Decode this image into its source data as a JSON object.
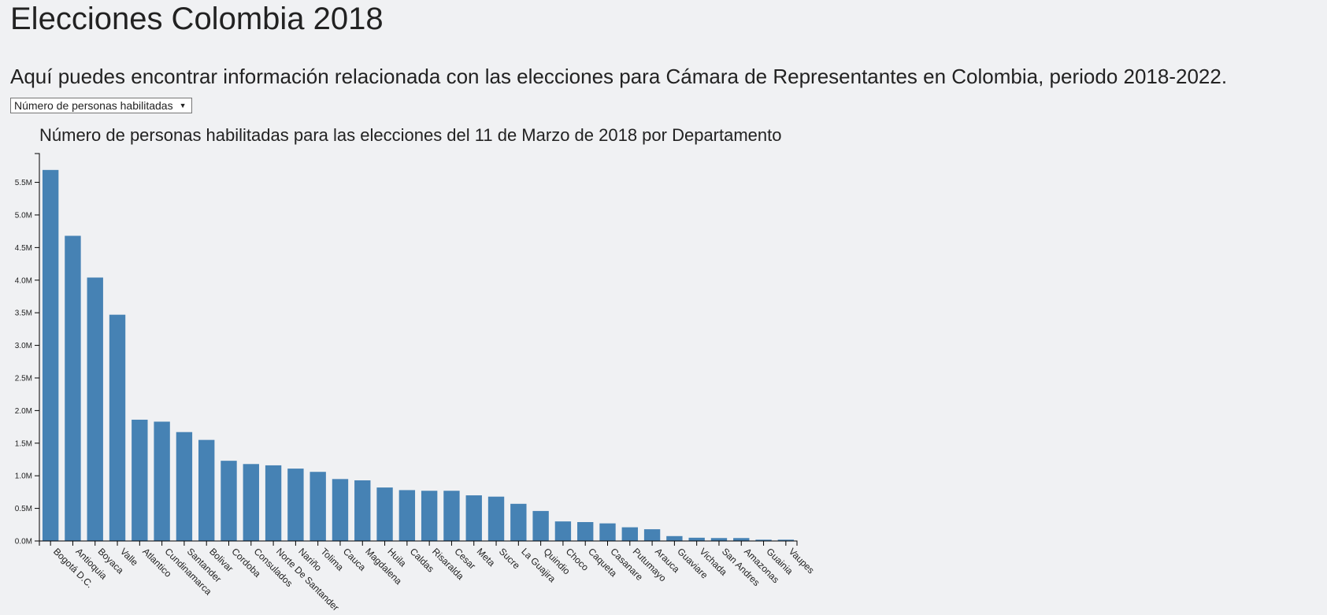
{
  "header": {
    "title": "Elecciones Colombia 2018",
    "subtitle": "Aquí puedes encontrar información relacionada con las elecciones para Cámara de Representantes en Colombia, periodo 2018-2022."
  },
  "controls": {
    "metric_select": {
      "selected": "Número de personas habilitadas",
      "arrow": "▼"
    }
  },
  "colors": {
    "bar": "#4682b4",
    "background": "#f0f1f3"
  },
  "chart_data": {
    "type": "bar",
    "title": "Número de personas habilitadas para las elecciones del 11 de Marzo de 2018 por Departamento",
    "xlabel": "",
    "ylabel": "",
    "ylim": [
      0,
      5700000
    ],
    "yticks": [
      0,
      500000,
      1000000,
      1500000,
      2000000,
      2500000,
      3000000,
      3500000,
      4000000,
      4500000,
      5000000,
      5500000
    ],
    "ytick_labels": [
      "0.0M",
      "0.5M",
      "1.0M",
      "1.5M",
      "2.0M",
      "2.5M",
      "3.0M",
      "3.5M",
      "4.0M",
      "4.5M",
      "5.0M",
      "5.5M"
    ],
    "grid": false,
    "categories": [
      "Bogotá D.C.",
      "Antioquia",
      "Boyaca",
      "Valle",
      "Atlantico",
      "Cundinamarca",
      "Santander",
      "Bolivar",
      "Cordoba",
      "Consulados",
      "Norte De Santander",
      "Nariño",
      "Tolima",
      "Cauca",
      "Magdalena",
      "Huila",
      "Caldas",
      "Risaralda",
      "Cesar",
      "Meta",
      "Sucre",
      "La Guajira",
      "Quindio",
      "Choco",
      "Caqueta",
      "Casanare",
      "Putumayo",
      "Arauca",
      "Guaviare",
      "Vichada",
      "San Andres",
      "Amazonas",
      "Guainia",
      "Vaupes"
    ],
    "values": [
      5690000,
      4680000,
      4040000,
      3470000,
      1860000,
      1830000,
      1670000,
      1550000,
      1230000,
      1180000,
      1160000,
      1110000,
      1060000,
      950000,
      930000,
      820000,
      780000,
      770000,
      770000,
      700000,
      680000,
      570000,
      460000,
      300000,
      290000,
      270000,
      210000,
      180000,
      75000,
      50000,
      45000,
      45000,
      20000,
      20000
    ]
  }
}
